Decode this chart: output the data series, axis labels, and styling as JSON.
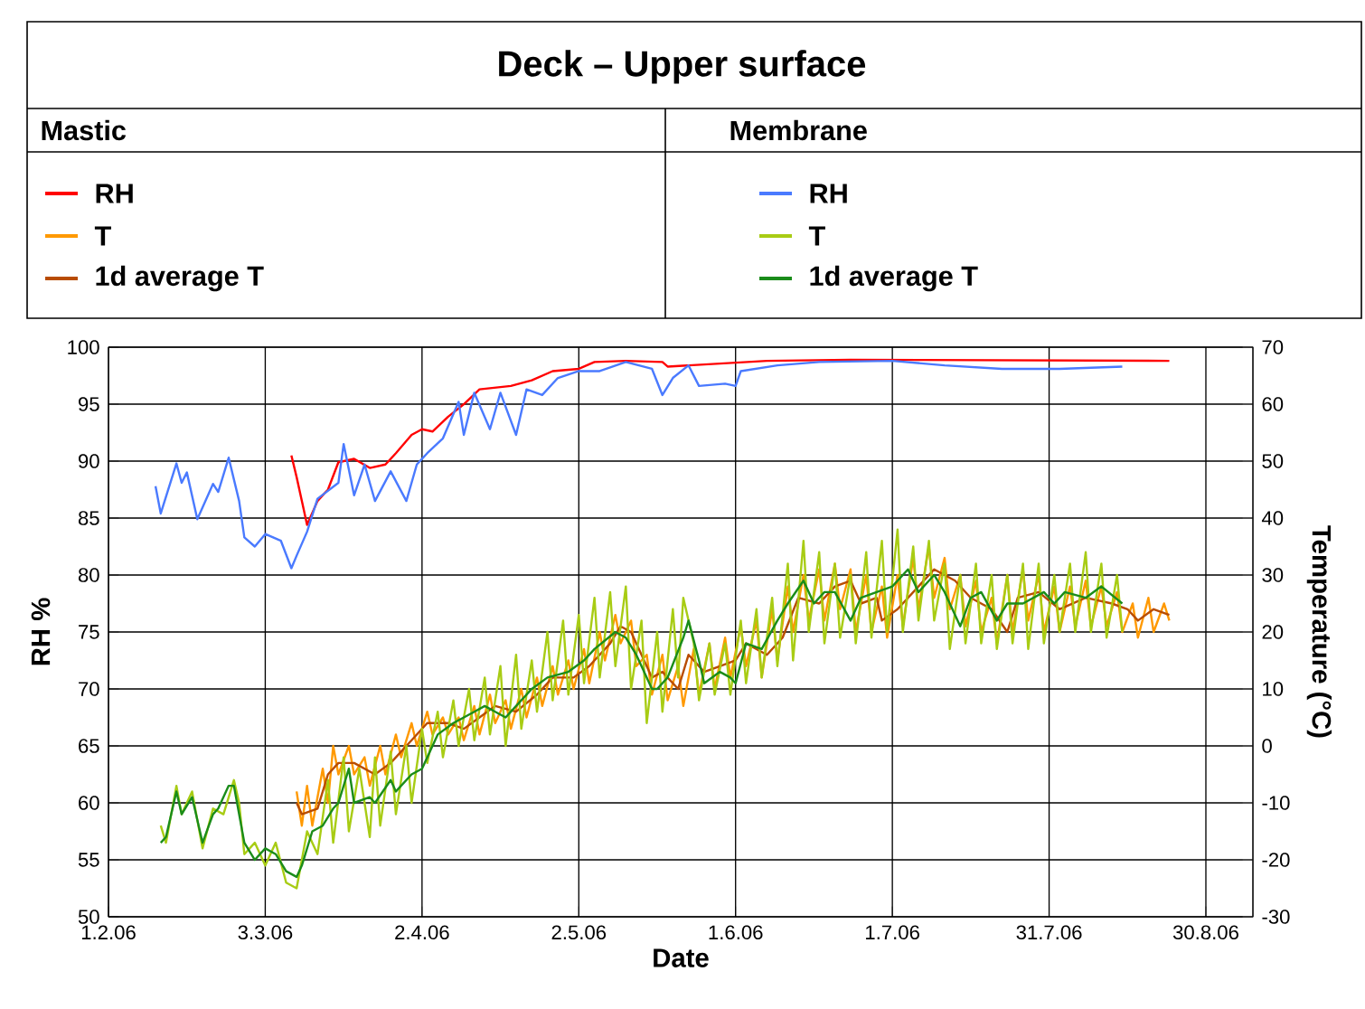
{
  "chart_data": {
    "type": "line",
    "title": "Deck – Upper  surface",
    "xlabel": "Date",
    "ylabel": "RH %",
    "y2label": "Temperature (°C)",
    "annotations": [
      "Mastic",
      "Membrane"
    ],
    "xlim": [
      "2006-02-01",
      "2006-09-08"
    ],
    "xticks": [
      {
        "value": "2006-02-01",
        "label": "1.2.06"
      },
      {
        "value": "2006-03-03",
        "label": "3.3.06"
      },
      {
        "value": "2006-04-02",
        "label": "2.4.06"
      },
      {
        "value": "2006-05-02",
        "label": "2.5.06"
      },
      {
        "value": "2006-06-01",
        "label": "1.6.06"
      },
      {
        "value": "2006-07-01",
        "label": "1.7.06"
      },
      {
        "value": "2006-07-31",
        "label": "31.7.06"
      },
      {
        "value": "2006-08-30",
        "label": "30.8.06"
      }
    ],
    "ylim": [
      50,
      100
    ],
    "yticks": [
      50,
      55,
      60,
      65,
      70,
      75,
      80,
      85,
      90,
      95,
      100
    ],
    "y2lim": [
      -30,
      70
    ],
    "y2ticks": [
      -30,
      -20,
      -10,
      0,
      10,
      20,
      30,
      40,
      50,
      60,
      70
    ],
    "grid": true,
    "legend": "top",
    "series": [
      {
        "name": "RH",
        "color": "#ff0000",
        "x": [
          "2006-03-08",
          "2006-03-09",
          "2006-03-10",
          "2006-03-11",
          "2006-03-13",
          "2006-03-15",
          "2006-03-17",
          "2006-03-20",
          "2006-03-23",
          "2006-03-26",
          "2006-03-28",
          "2006-03-31",
          "2006-04-02",
          "2006-04-04",
          "2006-04-07",
          "2006-04-10",
          "2006-04-13",
          "2006-04-19",
          "2006-04-23",
          "2006-04-27",
          "2006-05-02",
          "2006-05-05",
          "2006-05-11",
          "2006-05-18",
          "2006-05-19",
          "2006-06-07",
          "2006-06-23",
          "2006-08-23"
        ],
        "values": [
          90.5,
          88.6,
          86.5,
          84.4,
          86.5,
          87.5,
          89.9,
          90.2,
          89.4,
          89.7,
          90.7,
          92.3,
          92.8,
          92.6,
          93.9,
          95,
          96.3,
          96.6,
          97.1,
          97.9,
          98.1,
          98.7,
          98.8,
          98.7,
          98.3,
          98.8,
          98.9,
          98.8
        ]
      },
      {
        "name": "T",
        "color": "#ff9900",
        "axis": "y2",
        "x": [
          "2006-03-09",
          "2006-03-10",
          "2006-03-11",
          "2006-03-12",
          "2006-03-14",
          "2006-03-15",
          "2006-03-16",
          "2006-03-17",
          "2006-03-19",
          "2006-03-20",
          "2006-03-22",
          "2006-03-23",
          "2006-03-25",
          "2006-03-26",
          "2006-03-28",
          "2006-03-29",
          "2006-03-31",
          "2006-04-01",
          "2006-04-03",
          "2006-04-04",
          "2006-04-06",
          "2006-04-07",
          "2006-04-09",
          "2006-04-10",
          "2006-04-12",
          "2006-04-13",
          "2006-04-15",
          "2006-04-16",
          "2006-04-18",
          "2006-04-19",
          "2006-04-21",
          "2006-04-22",
          "2006-04-24",
          "2006-04-25",
          "2006-04-27",
          "2006-04-28",
          "2006-04-30",
          "2006-05-01",
          "2006-05-03",
          "2006-05-04",
          "2006-05-06",
          "2006-05-07",
          "2006-05-09",
          "2006-05-10",
          "2006-05-12",
          "2006-05-13",
          "2006-05-15",
          "2006-05-16",
          "2006-05-18",
          "2006-05-19",
          "2006-05-21",
          "2006-05-22",
          "2006-05-24",
          "2006-05-25",
          "2006-05-27",
          "2006-05-28",
          "2006-05-30",
          "2006-05-31",
          "2006-06-02",
          "2006-06-03",
          "2006-06-05",
          "2006-06-06",
          "2006-06-08",
          "2006-06-09",
          "2006-06-11",
          "2006-06-12",
          "2006-06-14",
          "2006-06-15",
          "2006-06-17",
          "2006-06-18",
          "2006-06-20",
          "2006-06-21",
          "2006-06-23",
          "2006-06-24",
          "2006-06-26",
          "2006-06-27",
          "2006-06-29",
          "2006-06-30",
          "2006-07-02",
          "2006-07-03",
          "2006-07-05",
          "2006-07-06",
          "2006-07-08",
          "2006-07-09",
          "2006-07-11",
          "2006-07-12",
          "2006-07-14",
          "2006-07-15",
          "2006-07-17",
          "2006-07-18",
          "2006-07-20",
          "2006-07-21",
          "2006-07-23",
          "2006-07-24",
          "2006-07-26",
          "2006-07-27",
          "2006-07-29",
          "2006-07-30",
          "2006-08-01",
          "2006-08-02",
          "2006-08-04",
          "2006-08-05",
          "2006-08-07",
          "2006-08-08",
          "2006-08-10",
          "2006-08-11",
          "2006-08-13",
          "2006-08-14",
          "2006-08-16",
          "2006-08-17",
          "2006-08-19",
          "2006-08-20",
          "2006-08-22",
          "2006-08-23"
        ],
        "values": [
          -8,
          -14,
          -7,
          -14,
          -4,
          -10,
          0,
          -5,
          0,
          -5,
          -2,
          -7,
          0,
          -5,
          2,
          -2,
          4,
          0,
          6,
          2,
          5,
          2,
          5,
          1,
          7,
          2,
          9,
          4,
          8,
          3,
          10,
          5,
          12,
          7,
          14,
          9,
          15,
          10,
          17,
          11,
          20,
          15,
          23,
          18,
          22,
          14,
          16,
          9,
          16,
          8,
          14,
          7,
          17,
          9,
          18,
          10,
          19,
          12,
          21,
          14,
          22,
          12,
          24,
          15,
          28,
          20,
          30,
          22,
          31,
          22,
          32,
          24,
          31,
          20,
          30,
          20,
          28,
          19,
          30,
          21,
          33,
          24,
          35,
          26,
          33,
          24,
          30,
          21,
          29,
          20,
          26,
          18,
          30,
          20,
          31,
          22,
          30,
          20,
          28,
          20,
          28,
          21,
          29,
          21,
          28,
          21,
          27,
          20,
          25,
          19,
          26,
          20,
          25,
          22
        ]
      },
      {
        "name": "1d average T",
        "color": "#b84c00",
        "axis": "y2",
        "x": [
          "2006-03-09",
          "2006-03-10",
          "2006-03-13",
          "2006-03-15",
          "2006-03-17",
          "2006-03-20",
          "2006-03-24",
          "2006-03-27",
          "2006-03-31",
          "2006-04-03",
          "2006-04-07",
          "2006-04-10",
          "2006-04-13",
          "2006-04-16",
          "2006-04-20",
          "2006-04-24",
          "2006-04-27",
          "2006-05-01",
          "2006-05-04",
          "2006-05-08",
          "2006-05-10",
          "2006-05-12",
          "2006-05-16",
          "2006-05-18",
          "2006-05-21",
          "2006-05-23",
          "2006-05-26",
          "2006-05-29",
          "2006-06-01",
          "2006-06-03",
          "2006-06-07",
          "2006-06-10",
          "2006-06-13",
          "2006-06-17",
          "2006-06-20",
          "2006-06-23",
          "2006-06-25",
          "2006-06-28",
          "2006-06-29",
          "2006-07-02",
          "2006-07-06",
          "2006-07-09",
          "2006-07-13",
          "2006-07-16",
          "2006-07-20",
          "2006-07-23",
          "2006-07-25",
          "2006-07-29",
          "2006-08-02",
          "2006-08-07",
          "2006-08-12",
          "2006-08-15",
          "2006-08-17",
          "2006-08-20",
          "2006-08-23"
        ],
        "values": [
          -10,
          -12,
          -11,
          -5,
          -3,
          -3,
          -5,
          -3,
          1,
          4,
          4,
          3,
          5,
          7,
          6,
          9,
          12,
          12,
          14,
          18,
          21,
          20,
          12,
          13,
          10,
          16,
          13,
          14,
          15,
          18,
          16,
          19,
          26,
          25,
          28,
          29,
          25,
          26,
          22,
          24,
          28,
          31,
          29,
          26,
          24,
          20,
          26,
          27,
          24,
          26,
          25,
          24,
          22,
          24,
          23
        ]
      },
      {
        "name": "RH",
        "color": "#4a7aff",
        "x": [
          "2006-02-10",
          "2006-02-11",
          "2006-02-14",
          "2006-02-15",
          "2006-02-16",
          "2006-02-18",
          "2006-02-21",
          "2006-02-22",
          "2006-02-24",
          "2006-02-26",
          "2006-02-27",
          "2006-03-01",
          "2006-03-03",
          "2006-03-06",
          "2006-03-08",
          "2006-03-09",
          "2006-03-11",
          "2006-03-13",
          "2006-03-17",
          "2006-03-18",
          "2006-03-20",
          "2006-03-22",
          "2006-03-24",
          "2006-03-27",
          "2006-03-30",
          "2006-04-01",
          "2006-04-03",
          "2006-04-06",
          "2006-04-09",
          "2006-04-10",
          "2006-04-12",
          "2006-04-15",
          "2006-04-17",
          "2006-04-20",
          "2006-04-22",
          "2006-04-25",
          "2006-04-28",
          "2006-05-02",
          "2006-05-06",
          "2006-05-11",
          "2006-05-16",
          "2006-05-18",
          "2006-05-20",
          "2006-05-23",
          "2006-05-25",
          "2006-05-30",
          "2006-06-01",
          "2006-06-02",
          "2006-06-09",
          "2006-06-17",
          "2006-07-01",
          "2006-07-11",
          "2006-07-22",
          "2006-08-02",
          "2006-08-14"
        ],
        "values": [
          87.8,
          85.4,
          89.8,
          88.1,
          89,
          84.9,
          88,
          87.3,
          90.3,
          86.5,
          83.3,
          82.5,
          83.6,
          83,
          80.6,
          81.7,
          83.8,
          86.7,
          88.1,
          91.5,
          87,
          89.7,
          86.5,
          89.1,
          86.5,
          89.7,
          90.7,
          92,
          95.2,
          92.3,
          96,
          92.8,
          96,
          92.3,
          96.3,
          95.8,
          97.3,
          97.9,
          97.9,
          98.7,
          98.1,
          95.8,
          97.3,
          98.4,
          96.6,
          96.8,
          96.6,
          97.9,
          98.4,
          98.7,
          98.8,
          98.4,
          98.1,
          98.1,
          98.3
        ]
      },
      {
        "name": "T",
        "color": "#a8cc14",
        "axis": "y2",
        "x": [
          "2006-02-11",
          "2006-02-12",
          "2006-02-14",
          "2006-02-15",
          "2006-02-17",
          "2006-02-19",
          "2006-02-21",
          "2006-02-23",
          "2006-02-25",
          "2006-02-26",
          "2006-02-27",
          "2006-03-01",
          "2006-03-03",
          "2006-03-05",
          "2006-03-07",
          "2006-03-09",
          "2006-03-11",
          "2006-03-13",
          "2006-03-15",
          "2006-03-16",
          "2006-03-18",
          "2006-03-19",
          "2006-03-21",
          "2006-03-23",
          "2006-03-24",
          "2006-03-25",
          "2006-03-27",
          "2006-03-28",
          "2006-03-30",
          "2006-03-31",
          "2006-04-02",
          "2006-04-03",
          "2006-04-05",
          "2006-04-06",
          "2006-04-08",
          "2006-04-09",
          "2006-04-11",
          "2006-04-12",
          "2006-04-14",
          "2006-04-15",
          "2006-04-17",
          "2006-04-18",
          "2006-04-20",
          "2006-04-21",
          "2006-04-23",
          "2006-04-24",
          "2006-04-26",
          "2006-04-27",
          "2006-04-29",
          "2006-04-30",
          "2006-05-02",
          "2006-05-03",
          "2006-05-05",
          "2006-05-06",
          "2006-05-08",
          "2006-05-09",
          "2006-05-11",
          "2006-05-12",
          "2006-05-14",
          "2006-05-15",
          "2006-05-17",
          "2006-05-18",
          "2006-05-20",
          "2006-05-21",
          "2006-05-22",
          "2006-05-24",
          "2006-05-25",
          "2006-05-27",
          "2006-05-28",
          "2006-05-30",
          "2006-05-31",
          "2006-06-02",
          "2006-06-03",
          "2006-06-05",
          "2006-06-06",
          "2006-06-08",
          "2006-06-09",
          "2006-06-11",
          "2006-06-12",
          "2006-06-14",
          "2006-06-15",
          "2006-06-17",
          "2006-06-18",
          "2006-06-20",
          "2006-06-21",
          "2006-06-23",
          "2006-06-24",
          "2006-06-26",
          "2006-06-27",
          "2006-06-29",
          "2006-06-30",
          "2006-07-02",
          "2006-07-03",
          "2006-07-05",
          "2006-07-06",
          "2006-07-08",
          "2006-07-09",
          "2006-07-11",
          "2006-07-12",
          "2006-07-14",
          "2006-07-15",
          "2006-07-17",
          "2006-07-18",
          "2006-07-20",
          "2006-07-21",
          "2006-07-23",
          "2006-07-24",
          "2006-07-26",
          "2006-07-27",
          "2006-07-29",
          "2006-07-30",
          "2006-08-01",
          "2006-08-02",
          "2006-08-04",
          "2006-08-05",
          "2006-08-07",
          "2006-08-08",
          "2006-08-10",
          "2006-08-11",
          "2006-08-13",
          "2006-08-14"
        ],
        "values": [
          -14,
          -17,
          -7,
          -12,
          -8,
          -18,
          -11,
          -12,
          -6,
          -10,
          -19,
          -17,
          -21,
          -17,
          -24,
          -25,
          -15,
          -19,
          -6,
          -17,
          -2,
          -15,
          -4,
          -16,
          -2,
          -14,
          -1,
          -12,
          0,
          -10,
          3,
          -3,
          6,
          -2,
          8,
          0,
          10,
          1,
          12,
          2,
          14,
          0,
          16,
          3,
          15,
          6,
          20,
          8,
          22,
          9,
          23,
          11,
          26,
          12,
          27,
          14,
          28,
          10,
          22,
          4,
          20,
          6,
          24,
          12,
          26,
          18,
          8,
          18,
          9,
          18,
          9,
          22,
          11,
          24,
          12,
          26,
          14,
          32,
          15,
          36,
          20,
          34,
          18,
          32,
          19,
          30,
          18,
          34,
          19,
          36,
          20,
          38,
          20,
          35,
          22,
          36,
          22,
          32,
          17,
          30,
          18,
          32,
          18,
          30,
          17,
          30,
          18,
          32,
          17,
          32,
          18,
          30,
          20,
          32,
          20,
          34,
          20,
          32,
          19,
          30,
          20
        ]
      },
      {
        "name": "1d average T",
        "color": "#1a8c1a",
        "axis": "y2",
        "x": [
          "2006-02-11",
          "2006-02-12",
          "2006-02-14",
          "2006-02-15",
          "2006-02-17",
          "2006-02-19",
          "2006-02-21",
          "2006-02-22",
          "2006-02-24",
          "2006-02-25",
          "2006-02-27",
          "2006-03-01",
          "2006-03-03",
          "2006-03-05",
          "2006-03-07",
          "2006-03-09",
          "2006-03-10",
          "2006-03-12",
          "2006-03-14",
          "2006-03-16",
          "2006-03-17",
          "2006-03-19",
          "2006-03-20",
          "2006-03-23",
          "2006-03-24",
          "2006-03-27",
          "2006-03-28",
          "2006-03-31",
          "2006-04-02",
          "2006-04-05",
          "2006-04-08",
          "2006-04-10",
          "2006-04-12",
          "2006-04-14",
          "2006-04-16",
          "2006-04-18",
          "2006-04-20",
          "2006-04-23",
          "2006-04-26",
          "2006-04-30",
          "2006-05-03",
          "2006-05-05",
          "2006-05-09",
          "2006-05-11",
          "2006-05-13",
          "2006-05-16",
          "2006-05-17",
          "2006-05-19",
          "2006-05-22",
          "2006-05-23",
          "2006-05-25",
          "2006-05-26",
          "2006-05-29",
          "2006-05-31",
          "2006-06-01",
          "2006-06-03",
          "2006-06-06",
          "2006-06-09",
          "2006-06-11",
          "2006-06-14",
          "2006-06-16",
          "2006-06-18",
          "2006-06-20",
          "2006-06-23",
          "2006-06-25",
          "2006-06-28",
          "2006-07-01",
          "2006-07-04",
          "2006-07-06",
          "2006-07-09",
          "2006-07-11",
          "2006-07-14",
          "2006-07-16",
          "2006-07-18",
          "2006-07-21",
          "2006-07-23",
          "2006-07-26",
          "2006-07-30",
          "2006-08-01",
          "2006-08-03",
          "2006-08-07",
          "2006-08-10",
          "2006-08-14"
        ],
        "values": [
          -17,
          -16,
          -8,
          -12,
          -9,
          -17,
          -12,
          -11,
          -7,
          -7,
          -17,
          -20,
          -18,
          -19,
          -22,
          -23,
          -21,
          -15,
          -14,
          -11,
          -10,
          -4,
          -10,
          -9,
          -10,
          -6,
          -8,
          -5,
          -4,
          2,
          4,
          5,
          6,
          7,
          6,
          5,
          7,
          10,
          12,
          13,
          15,
          17,
          20,
          19,
          16,
          10,
          10,
          12,
          19,
          22,
          15,
          11,
          13,
          12,
          11,
          18,
          17,
          22,
          25,
          29,
          25,
          27,
          27,
          22,
          26,
          27,
          28,
          31,
          27,
          30,
          27,
          21,
          26,
          27,
          22,
          25,
          25,
          27,
          25,
          27,
          26,
          28,
          25
        ]
      }
    ]
  }
}
